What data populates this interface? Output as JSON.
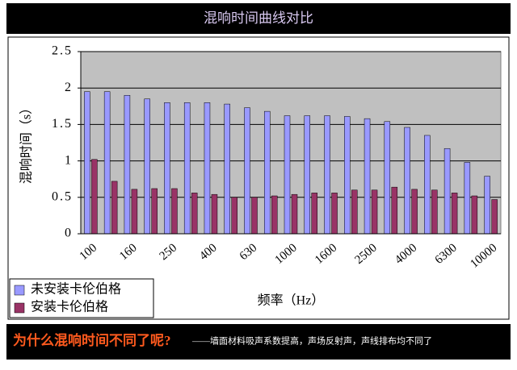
{
  "chart_data": {
    "type": "bar",
    "title": "混响时间曲线对比",
    "y_label": "混响时间（s）",
    "x_label": "频率（Hz）",
    "categories": [
      "100",
      null,
      "160",
      null,
      "250",
      null,
      "400",
      null,
      "630",
      null,
      "1000",
      null,
      "1600",
      null,
      "2500",
      null,
      "4000",
      null,
      "6300",
      null,
      "10000"
    ],
    "series": [
      {
        "name": "未安装卡伦伯格",
        "color": "#9999ff",
        "values": [
          1.95,
          1.95,
          1.9,
          1.85,
          1.8,
          1.8,
          1.8,
          1.78,
          1.73,
          1.68,
          1.62,
          1.62,
          1.62,
          1.61,
          1.58,
          1.54,
          1.46,
          1.35,
          1.17,
          0.98,
          0.79
        ]
      },
      {
        "name": "安装卡伦伯格",
        "color": "#993366",
        "values": [
          1.02,
          0.72,
          0.61,
          0.62,
          0.62,
          0.56,
          0.54,
          0.5,
          0.5,
          0.52,
          0.54,
          0.56,
          0.56,
          0.6,
          0.6,
          0.64,
          0.61,
          0.6,
          0.56,
          0.52,
          0.47
        ]
      }
    ],
    "ylim": [
      0,
      2.5
    ],
    "yticks": [
      0,
      0.5,
      1,
      1.5,
      2,
      2.5
    ],
    "grid": true,
    "legend": "bottom-left"
  },
  "footer": {
    "question": "为什么混响时间不同了呢?",
    "note": "——墙面材料吸声系数提高，声场反射声，声线排布均不同了"
  }
}
